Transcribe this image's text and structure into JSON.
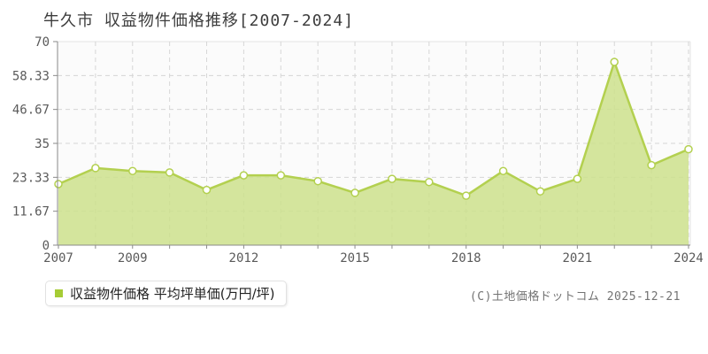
{
  "title": "牛久市 収益物件価格推移[2007-2024]",
  "legend": {
    "label": "収益物件価格 平均坪単価(万円/坪)"
  },
  "copyright": "(C)土地価格ドットコム 2025-12-21",
  "colors": {
    "area_fill": "#cde18c",
    "line": "#b3d04f",
    "marker_fill": "#ffffff",
    "marker_stroke": "#b3d04f",
    "legend_marker": "#a6cc35",
    "grid": "#d6d6d6",
    "frame_light": "#e3e3e3",
    "axis": "#8a8a8a",
    "tick_text": "#5a5a5a",
    "plot_bg": "#fbfbfb"
  },
  "chart_data": {
    "type": "area",
    "title": "牛久市 収益物件価格推移[2007-2024]",
    "x": [
      2007,
      2008,
      2009,
      2010,
      2011,
      2012,
      2013,
      2014,
      2015,
      2016,
      2017,
      2018,
      2019,
      2020,
      2021,
      2022,
      2023,
      2024
    ],
    "series": [
      {
        "name": "収益物件価格 平均坪単価(万円/坪)",
        "values": [
          21,
          26.5,
          25.5,
          25,
          19,
          24,
          24,
          22,
          18,
          22.8,
          21.7,
          17,
          25.5,
          18.5,
          22.8,
          63,
          27.5,
          33
        ]
      }
    ],
    "xlabel": "",
    "ylabel": "平均坪単価(万円/坪)",
    "ylim": [
      0,
      70
    ],
    "yticks": [
      0,
      11.67,
      23.33,
      35,
      46.67,
      58.33,
      70
    ],
    "ytick_labels": [
      "0",
      "11.67",
      "23.33",
      "35",
      "46.67",
      "58.33",
      "70"
    ],
    "xtick_label_years": [
      2007,
      2009,
      2012,
      2015,
      2018,
      2021,
      2024
    ],
    "grid": "dashed",
    "legend_position": "bottom-left"
  }
}
